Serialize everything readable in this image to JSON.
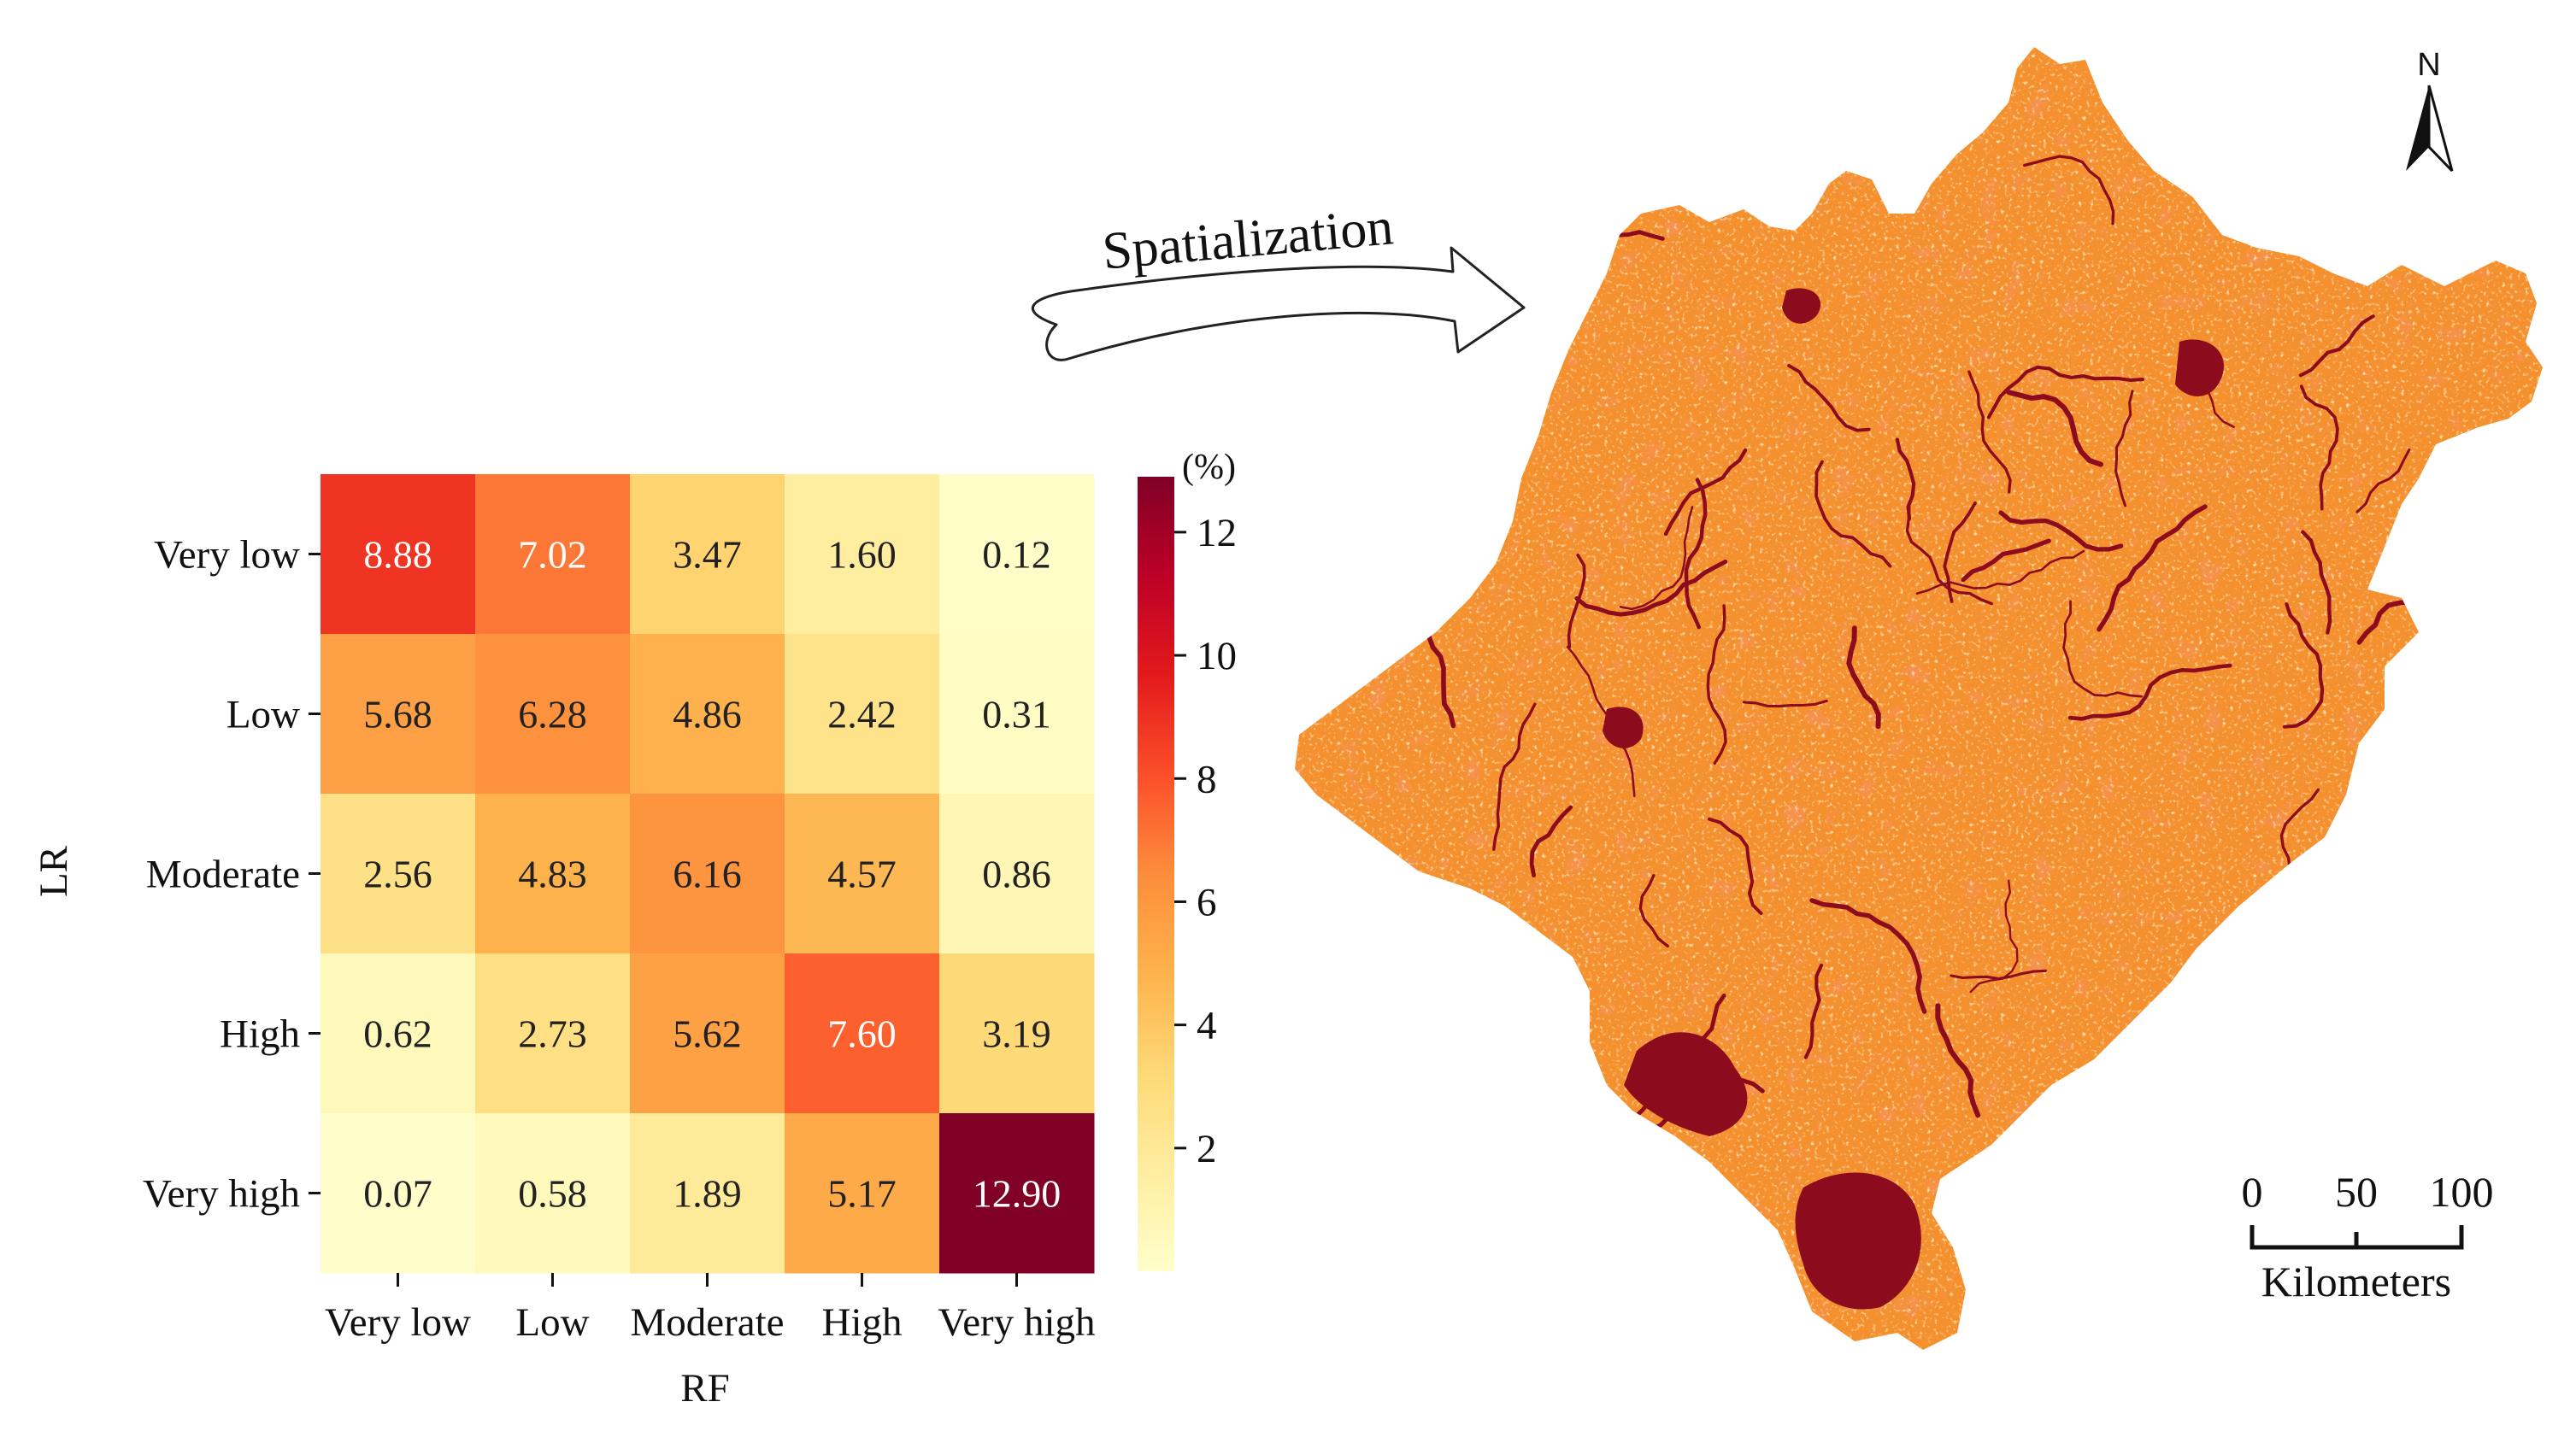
{
  "chart_data": {
    "type": "heatmap",
    "title": "",
    "xlabel": "RF",
    "ylabel": "LR",
    "x_categories": [
      "Very low",
      "Low",
      "Moderate",
      "High",
      "Very high"
    ],
    "y_categories": [
      "Very low",
      "Low",
      "Moderate",
      "High",
      "Very high"
    ],
    "values": [
      [
        8.88,
        7.02,
        3.47,
        1.6,
        0.12
      ],
      [
        5.68,
        6.28,
        4.86,
        2.42,
        0.31
      ],
      [
        2.56,
        4.83,
        6.16,
        4.57,
        0.86
      ],
      [
        0.62,
        2.73,
        5.62,
        7.6,
        3.19
      ],
      [
        0.07,
        0.58,
        1.89,
        5.17,
        12.9
      ]
    ],
    "colorbar": {
      "label": "(%)",
      "ticks": [
        "2",
        "4",
        "6",
        "8",
        "10",
        "12"
      ],
      "tick_values": [
        2,
        4,
        6,
        8,
        10,
        12
      ],
      "range": [
        0,
        12.9
      ],
      "colormap": "YlOrRd",
      "colors": [
        "#ffffcc",
        "#ffeda0",
        "#fed976",
        "#feb24c",
        "#fd8d3c",
        "#fc4e2a",
        "#e31a1c",
        "#bd0026",
        "#800026"
      ]
    },
    "grid": false
  },
  "annotation": {
    "arrow_label": "Spatialization"
  },
  "map": {
    "north_label": "N",
    "scale_ticks": [
      "0",
      "50",
      "100"
    ],
    "scale_unit": "Kilometers",
    "colors": {
      "base": "#f4902e",
      "high": "#ee4a1c",
      "dense": "#8c0c1e",
      "light": "#fad487"
    }
  }
}
